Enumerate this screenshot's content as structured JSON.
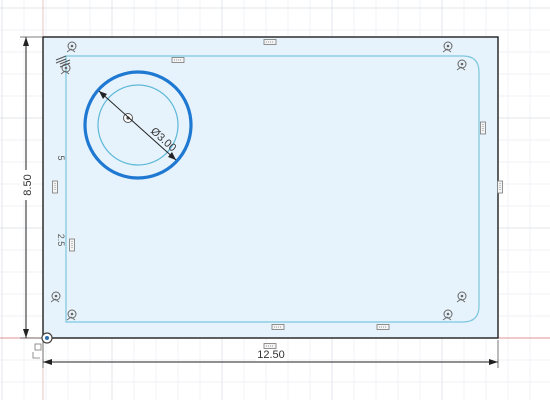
{
  "sketch": {
    "colors": {
      "background": "#ffffff",
      "grid": "#e6e9ee",
      "grid_major": "#d7dce3",
      "outline": "#1f1f1f",
      "profile_fill": "#e6f3fc",
      "inner_path": "#7cc6de",
      "selected_circle": "#1f78d1",
      "inner_circle": "#5fb8d8",
      "dimension": "#222222",
      "constraint_icon": "#666666",
      "origin_axis": "#e07a7a"
    },
    "dimensions": {
      "width": "12.50",
      "height": "8.50",
      "diameter": "Ø3.00",
      "side_upper": "5",
      "side_lower": "2.5"
    }
  }
}
